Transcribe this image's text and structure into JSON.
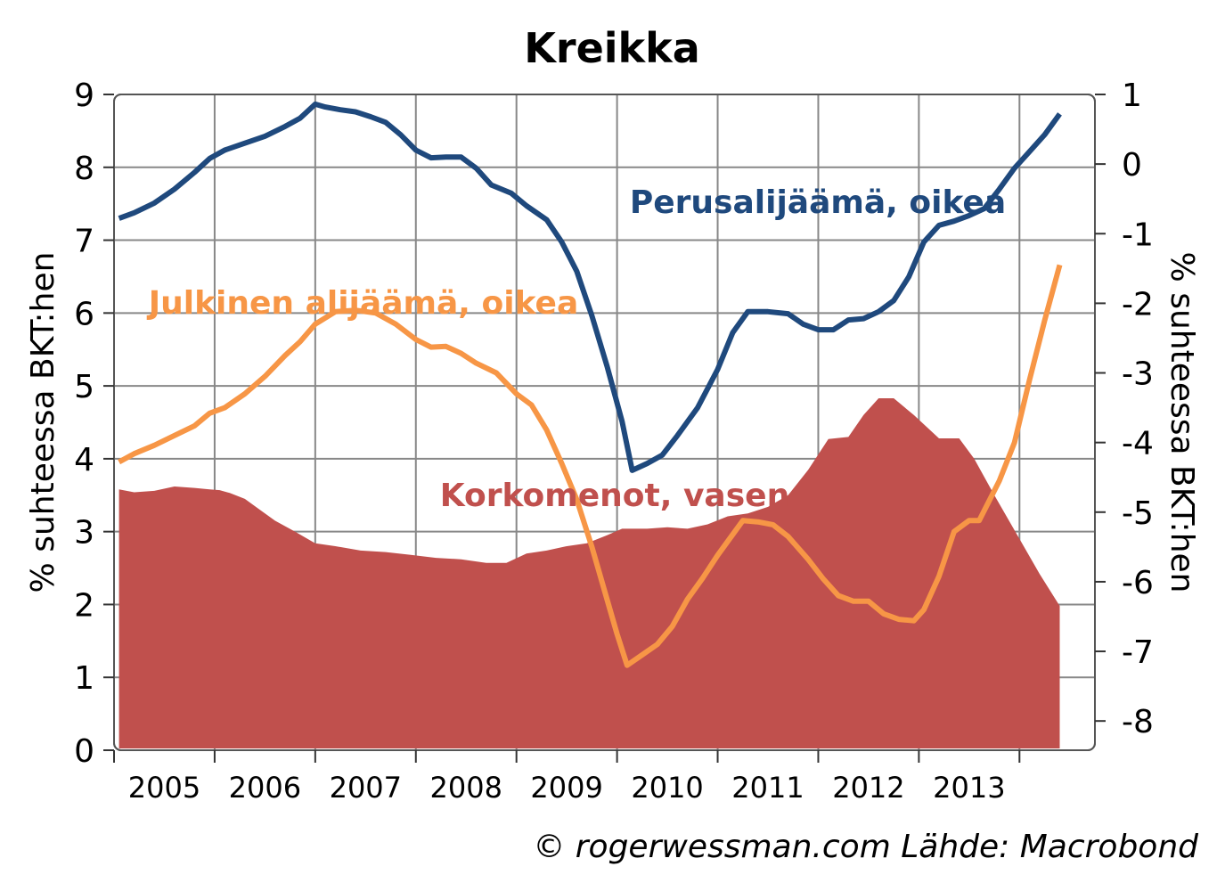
{
  "chart_data": {
    "type": "line",
    "title": "Kreikka",
    "ylabel_left": "% suhteessa BKT:hen",
    "ylabel_right": "% suhteessa BKT:hen",
    "source": "© rogerwessman.com Lähde: Macrobond",
    "x_ticks": [
      "2005",
      "2006",
      "2007",
      "2008",
      "2009",
      "2010",
      "2011",
      "2012",
      "2013"
    ],
    "y_left_ticks": [
      "0",
      "1",
      "2",
      "3",
      "4",
      "5",
      "6",
      "7",
      "8",
      "9"
    ],
    "y_right_ticks": [
      "1",
      "0",
      "-1",
      "-2",
      "-3",
      "-4",
      "-5",
      "-6",
      "-7",
      "-8"
    ],
    "ylim_left": [
      0,
      9
    ],
    "ylim_right": [
      -8.42,
      1.0
    ],
    "xlim": [
      2004.0,
      2013.75
    ],
    "grid": true,
    "colors": {
      "interest": "#c0504d",
      "primary": "#1f497d",
      "deficit": "#f79646"
    },
    "labels": {
      "primary": "Perusalijäämä, oikea",
      "deficit": "Julkinen alijäämä, oikea",
      "interest": "Korkomenot, vasen"
    },
    "series": [
      {
        "name": "Korkomenot, vasen",
        "axis": "left",
        "kind": "area",
        "points": [
          [
            2004.05,
            3.58
          ],
          [
            2004.2,
            3.54
          ],
          [
            2004.4,
            3.56
          ],
          [
            2004.6,
            3.62
          ],
          [
            2004.8,
            3.6
          ],
          [
            2004.95,
            3.58
          ],
          [
            2005.05,
            3.57
          ],
          [
            2005.15,
            3.53
          ],
          [
            2005.3,
            3.45
          ],
          [
            2005.45,
            3.3
          ],
          [
            2005.6,
            3.15
          ],
          [
            2005.8,
            3.0
          ],
          [
            2006.0,
            2.84
          ],
          [
            2006.2,
            2.8
          ],
          [
            2006.45,
            2.74
          ],
          [
            2006.7,
            2.72
          ],
          [
            2006.95,
            2.68
          ],
          [
            2007.2,
            2.64
          ],
          [
            2007.45,
            2.62
          ],
          [
            2007.7,
            2.57
          ],
          [
            2007.9,
            2.57
          ],
          [
            2008.1,
            2.7
          ],
          [
            2008.3,
            2.74
          ],
          [
            2008.5,
            2.8
          ],
          [
            2008.7,
            2.84
          ],
          [
            2008.9,
            2.95
          ],
          [
            2009.05,
            3.04
          ],
          [
            2009.3,
            3.04
          ],
          [
            2009.5,
            3.06
          ],
          [
            2009.7,
            3.04
          ],
          [
            2009.9,
            3.1
          ],
          [
            2010.1,
            3.21
          ],
          [
            2010.3,
            3.25
          ],
          [
            2010.5,
            3.34
          ],
          [
            2010.7,
            3.5
          ],
          [
            2010.9,
            3.85
          ],
          [
            2011.1,
            4.27
          ],
          [
            2011.3,
            4.3
          ],
          [
            2011.45,
            4.6
          ],
          [
            2011.6,
            4.83
          ],
          [
            2011.75,
            4.83
          ],
          [
            2011.95,
            4.6
          ],
          [
            2012.2,
            4.28
          ],
          [
            2012.4,
            4.28
          ],
          [
            2012.55,
            4.0
          ],
          [
            2012.75,
            3.5
          ],
          [
            2013.0,
            2.9
          ],
          [
            2013.2,
            2.42
          ],
          [
            2013.4,
            1.98
          ]
        ]
      },
      {
        "name": "Perusalijäämä, oikea",
        "axis": "right",
        "kind": "line",
        "points": [
          [
            2004.05,
            -0.78
          ],
          [
            2004.2,
            -0.7
          ],
          [
            2004.4,
            -0.56
          ],
          [
            2004.6,
            -0.36
          ],
          [
            2004.8,
            -0.12
          ],
          [
            2004.95,
            0.08
          ],
          [
            2005.1,
            0.2
          ],
          [
            2005.3,
            0.3
          ],
          [
            2005.5,
            0.4
          ],
          [
            2005.7,
            0.54
          ],
          [
            2005.85,
            0.66
          ],
          [
            2006.0,
            0.86
          ],
          [
            2006.1,
            0.82
          ],
          [
            2006.25,
            0.78
          ],
          [
            2006.4,
            0.75
          ],
          [
            2006.55,
            0.68
          ],
          [
            2006.7,
            0.6
          ],
          [
            2006.85,
            0.42
          ],
          [
            2007.0,
            0.2
          ],
          [
            2007.15,
            0.09
          ],
          [
            2007.3,
            0.1
          ],
          [
            2007.45,
            0.1
          ],
          [
            2007.6,
            -0.06
          ],
          [
            2007.75,
            -0.3
          ],
          [
            2007.95,
            -0.42
          ],
          [
            2008.1,
            -0.6
          ],
          [
            2008.3,
            -0.8
          ],
          [
            2008.45,
            -1.12
          ],
          [
            2008.6,
            -1.54
          ],
          [
            2008.75,
            -2.18
          ],
          [
            2008.9,
            -2.9
          ],
          [
            2009.05,
            -3.7
          ],
          [
            2009.15,
            -4.4
          ],
          [
            2009.3,
            -4.3
          ],
          [
            2009.45,
            -4.18
          ],
          [
            2009.6,
            -3.9
          ],
          [
            2009.8,
            -3.5
          ],
          [
            2010.0,
            -2.95
          ],
          [
            2010.15,
            -2.42
          ],
          [
            2010.3,
            -2.12
          ],
          [
            2010.5,
            -2.12
          ],
          [
            2010.7,
            -2.15
          ],
          [
            2010.85,
            -2.3
          ],
          [
            2011.0,
            -2.38
          ],
          [
            2011.15,
            -2.38
          ],
          [
            2011.3,
            -2.24
          ],
          [
            2011.45,
            -2.22
          ],
          [
            2011.6,
            -2.12
          ],
          [
            2011.75,
            -1.96
          ],
          [
            2011.9,
            -1.62
          ],
          [
            2012.05,
            -1.12
          ],
          [
            2012.2,
            -0.88
          ],
          [
            2012.35,
            -0.82
          ],
          [
            2012.5,
            -0.74
          ],
          [
            2012.65,
            -0.64
          ],
          [
            2012.8,
            -0.36
          ],
          [
            2012.95,
            -0.06
          ],
          [
            2013.1,
            0.18
          ],
          [
            2013.25,
            0.42
          ],
          [
            2013.4,
            0.72
          ]
        ]
      },
      {
        "name": "Julkinen alijäämä, oikea",
        "axis": "right",
        "kind": "line",
        "points": [
          [
            2004.05,
            -4.28
          ],
          [
            2004.2,
            -4.16
          ],
          [
            2004.4,
            -4.04
          ],
          [
            2004.6,
            -3.9
          ],
          [
            2004.8,
            -3.76
          ],
          [
            2004.95,
            -3.58
          ],
          [
            2005.1,
            -3.5
          ],
          [
            2005.3,
            -3.3
          ],
          [
            2005.5,
            -3.05
          ],
          [
            2005.7,
            -2.75
          ],
          [
            2005.85,
            -2.55
          ],
          [
            2006.0,
            -2.3
          ],
          [
            2006.2,
            -2.12
          ],
          [
            2006.4,
            -2.1
          ],
          [
            2006.6,
            -2.14
          ],
          [
            2006.8,
            -2.3
          ],
          [
            2007.0,
            -2.52
          ],
          [
            2007.15,
            -2.63
          ],
          [
            2007.3,
            -2.62
          ],
          [
            2007.45,
            -2.72
          ],
          [
            2007.6,
            -2.86
          ],
          [
            2007.8,
            -3.0
          ],
          [
            2008.0,
            -3.3
          ],
          [
            2008.15,
            -3.46
          ],
          [
            2008.3,
            -3.82
          ],
          [
            2008.45,
            -4.3
          ],
          [
            2008.6,
            -4.82
          ],
          [
            2008.75,
            -5.5
          ],
          [
            2008.9,
            -6.25
          ],
          [
            2009.0,
            -6.75
          ],
          [
            2009.1,
            -7.2
          ],
          [
            2009.25,
            -7.05
          ],
          [
            2009.4,
            -6.9
          ],
          [
            2009.55,
            -6.64
          ],
          [
            2009.7,
            -6.25
          ],
          [
            2009.85,
            -5.95
          ],
          [
            2010.0,
            -5.62
          ],
          [
            2010.15,
            -5.32
          ],
          [
            2010.25,
            -5.12
          ],
          [
            2010.4,
            -5.14
          ],
          [
            2010.55,
            -5.18
          ],
          [
            2010.7,
            -5.35
          ],
          [
            2010.9,
            -5.68
          ],
          [
            2011.05,
            -5.96
          ],
          [
            2011.2,
            -6.2
          ],
          [
            2011.35,
            -6.28
          ],
          [
            2011.5,
            -6.28
          ],
          [
            2011.65,
            -6.46
          ],
          [
            2011.8,
            -6.54
          ],
          [
            2011.95,
            -6.56
          ],
          [
            2012.05,
            -6.4
          ],
          [
            2012.2,
            -5.92
          ],
          [
            2012.35,
            -5.28
          ],
          [
            2012.5,
            -5.12
          ],
          [
            2012.6,
            -5.12
          ],
          [
            2012.8,
            -4.55
          ],
          [
            2012.95,
            -4.0
          ],
          [
            2013.1,
            -3.1
          ],
          [
            2013.25,
            -2.25
          ],
          [
            2013.4,
            -1.45
          ]
        ]
      }
    ]
  }
}
